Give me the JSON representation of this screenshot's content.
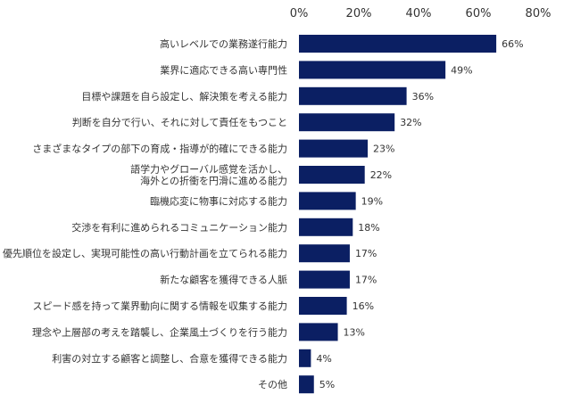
{
  "chart_data": {
    "type": "bar",
    "orientation": "horizontal",
    "categories": [
      [
        "高いレベルでの業務遂行能力"
      ],
      [
        "業界に適応できる高い専門性"
      ],
      [
        "目標や課題を自ら設定し、解決策を考える能力"
      ],
      [
        "判断を自分で行い、それに対して責任をもつこと"
      ],
      [
        "さまざまなタイプの部下の育成・指導が的確にできる能力"
      ],
      [
        "語学力やグローバル感覚を活かし、",
        "海外との折衝を円滑に進める能力"
      ],
      [
        "臨機応変に物事に対応する能力"
      ],
      [
        "交渉を有利に進められるコミュニケーション能力"
      ],
      [
        "優先順位を設定し、実現可能性の高い行動計画を立てられる能力"
      ],
      [
        "新たな顧客を獲得できる人脈"
      ],
      [
        "スピード感を持って業界動向に関する情報を収集する能力"
      ],
      [
        "理念や上層部の考えを踏襲し、企業風土づくりを行う能力"
      ],
      [
        "利害の対立する顧客と調整し、合意を獲得できる能力"
      ],
      [
        "その他"
      ]
    ],
    "values": [
      66,
      49,
      36,
      32,
      23,
      22,
      19,
      18,
      17,
      17,
      16,
      13,
      4,
      5
    ],
    "value_labels": [
      "66%",
      "49%",
      "36%",
      "32%",
      "23%",
      "22%",
      "19%",
      "18%",
      "17%",
      "17%",
      "16%",
      "13%",
      "4%",
      "5%"
    ],
    "x_ticks": [
      "0%",
      "20%",
      "40%",
      "60%",
      "80%"
    ],
    "xlim": [
      0,
      80
    ],
    "grid": false,
    "legend": "none",
    "bar_color": "#0b1f63"
  }
}
